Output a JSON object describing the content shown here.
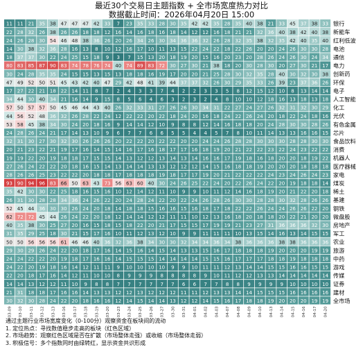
{
  "chart_data": {
    "type": "heatmap",
    "title": "最近30个交易日主题指数 + 全市场宽度热力对比",
    "subtitle": "数据截止时间：2026年04月20日 15:00",
    "x_dates": [
      "03-09",
      "03-10",
      "03-11",
      "03-12",
      "03-13",
      "03-16",
      "03-17",
      "03-18",
      "03-19",
      "03-20",
      "03-23",
      "03-24",
      "03-25",
      "03-26",
      "03-27",
      "03-30",
      "03-31",
      "04-01",
      "04-02",
      "04-03",
      "04-07",
      "04-08",
      "04-09",
      "04-10",
      "04-13",
      "04-14",
      "04-15",
      "04-16",
      "04-17",
      "04-20"
    ],
    "rows": [
      "银行",
      "新能车",
      "红利低波",
      "电池",
      "通信",
      "电力",
      "创新药",
      "环保",
      "电子",
      "人工智能",
      "化工",
      "光伏",
      "有色金属",
      "芯片",
      "食品饮料",
      "消费",
      "机器人",
      "医疗器械",
      "家电",
      "煤炭",
      "稀土",
      "基建",
      "钢铁",
      "微盘股",
      "房地产",
      "军工",
      "农业",
      "旅游",
      "中药",
      "游戏",
      "传媒",
      "证券",
      "建材",
      "全市场"
    ],
    "values": [
      [
        11,
        11,
        21,
        35,
        38,
        47,
        47,
        47,
        42,
        33,
        7,
        23,
        35,
        33,
        28,
        30,
        35,
        42,
        42,
        35,
        28,
        35,
        40,
        38,
        21,
        33,
        45,
        37,
        38,
        33
      ],
      [
        22,
        28,
        32,
        26,
        38,
        26,
        26,
        18,
        18,
        12,
        16,
        14,
        16,
        18,
        16,
        18,
        14,
        12,
        12,
        16,
        18,
        21,
        21,
        32,
        36,
        40,
        38,
        42,
        40,
        38
      ],
      [
        24,
        26,
        28,
        30,
        54,
        46,
        48,
        38,
        36,
        26,
        20,
        26,
        34,
        26,
        30,
        34,
        36,
        36,
        32,
        26,
        28,
        32,
        35,
        38,
        32,
        35,
        42,
        40,
        35,
        40
      ],
      [
        14,
        30,
        38,
        32,
        36,
        28,
        16,
        13,
        8,
        10,
        12,
        16,
        17,
        10,
        11,
        13,
        15,
        22,
        24,
        22,
        18,
        22,
        26,
        20,
        20,
        24,
        26,
        30,
        30,
        28
      ],
      [
        18,
        37,
        37,
        30,
        22,
        24,
        25,
        15,
        18,
        9,
        3,
        7,
        15,
        13,
        20,
        18,
        19,
        20,
        15,
        16,
        20,
        23,
        20,
        28,
        26,
        24,
        26,
        30,
        24,
        34
      ],
      [
        80,
        83,
        85,
        87,
        90,
        83,
        74,
        78,
        76,
        74,
        40,
        74,
        89,
        83,
        72,
        30,
        27,
        30,
        21,
        38,
        18,
        20,
        30,
        28,
        30,
        20,
        27,
        30,
        21,
        17
      ],
      [
        30,
        24,
        28,
        35,
        35,
        24,
        15,
        15,
        13,
        15,
        13,
        18,
        18,
        16,
        19,
        17,
        20,
        20,
        21,
        25,
        28,
        30,
        32,
        35,
        28,
        40,
        30,
        32,
        30,
        38
      ],
      [
        47,
        49,
        52,
        50,
        51,
        45,
        43,
        42,
        40,
        47,
        29,
        42,
        48,
        41,
        39,
        44,
        37,
        37,
        32,
        26,
        30,
        29,
        35,
        33,
        26,
        39,
        23,
        37,
        36,
        26
      ],
      [
        17,
        27,
        22,
        21,
        18,
        22,
        14,
        11,
        8,
        7,
        2,
        4,
        3,
        3,
        7,
        4,
        2,
        2,
        3,
        3,
        5,
        8,
        12,
        15,
        12,
        10,
        8,
        13,
        14,
        14
      ],
      [
        34,
        44,
        30,
        40,
        34,
        21,
        16,
        14,
        9,
        15,
        8,
        5,
        6,
        4,
        6,
        3,
        2,
        3,
        2,
        4,
        8,
        10,
        10,
        12,
        18,
        16,
        13,
        18,
        13,
        18
      ],
      [
        57,
        50,
        57,
        57,
        50,
        45,
        46,
        44,
        43,
        40,
        26,
        32,
        33,
        31,
        27,
        26,
        26,
        30,
        34,
        31,
        22,
        27,
        24,
        27,
        26,
        32,
        31,
        32,
        30,
        29
      ],
      [
        44,
        56,
        52,
        48,
        36,
        32,
        26,
        28,
        22,
        24,
        12,
        22,
        22,
        20,
        22,
        18,
        24,
        20,
        16,
        18,
        24,
        22,
        26,
        24,
        20,
        18,
        22,
        24,
        18,
        16
      ],
      [
        53,
        58,
        45,
        38,
        34,
        30,
        24,
        20,
        18,
        16,
        9,
        14,
        14,
        12,
        10,
        9,
        8,
        8,
        12,
        14,
        16,
        18,
        18,
        20,
        24,
        28,
        30,
        30,
        28,
        26
      ],
      [
        24,
        28,
        26,
        24,
        21,
        17,
        14,
        13,
        10,
        9,
        6,
        7,
        7,
        6,
        6,
        5,
        5,
        4,
        4,
        5,
        7,
        8,
        10,
        11,
        14,
        13,
        13,
        16,
        16,
        15
      ],
      [
        32,
        31,
        30,
        27,
        30,
        32,
        30,
        26,
        26,
        26,
        20,
        22,
        22,
        20,
        22,
        22,
        20,
        20,
        24,
        24,
        26,
        28,
        28,
        30,
        30,
        30,
        28,
        28,
        30,
        30
      ],
      [
        20,
        21,
        23,
        22,
        21,
        19,
        17,
        16,
        14,
        15,
        14,
        16,
        17,
        16,
        18,
        17,
        17,
        16,
        18,
        19,
        20,
        21,
        22,
        22,
        23,
        22,
        24,
        23,
        22,
        22
      ],
      [
        19,
        19,
        22,
        20,
        19,
        18,
        18,
        17,
        15,
        15,
        14,
        13,
        12,
        12,
        13,
        14,
        13,
        14,
        16,
        16,
        17,
        19,
        18,
        16,
        18,
        20,
        20,
        18,
        19,
        22
      ],
      [
        27,
        26,
        24,
        22,
        22,
        20,
        18,
        16,
        15,
        14,
        13,
        14,
        14,
        13,
        13,
        12,
        12,
        12,
        14,
        15,
        16,
        18,
        18,
        19,
        20,
        20,
        20,
        18,
        18,
        18
      ],
      [
        28,
        26,
        26,
        25,
        23,
        22,
        22,
        20,
        18,
        18,
        17,
        18,
        18,
        18,
        19,
        18,
        17,
        17,
        19,
        20,
        21,
        22,
        22,
        22,
        24,
        23,
        24,
        26,
        24,
        23
      ],
      [
        93,
        90,
        94,
        96,
        83,
        66,
        50,
        63,
        43,
        73,
        56,
        63,
        60,
        40,
        30,
        24,
        26,
        25,
        22,
        24,
        20,
        22,
        26,
        24,
        22,
        20,
        19,
        18,
        18,
        14
      ],
      [
        35,
        42,
        30,
        30,
        22,
        25,
        18,
        16,
        15,
        16,
        10,
        12,
        14,
        12,
        11,
        10,
        9,
        9,
        10,
        11,
        12,
        14,
        16,
        18,
        19,
        20,
        21,
        22,
        20,
        18
      ],
      [
        26,
        31,
        30,
        28,
        28,
        34,
        36,
        24,
        26,
        22,
        20,
        24,
        28,
        24,
        22,
        20,
        22,
        24,
        26,
        28,
        26,
        30,
        30,
        28,
        28,
        30,
        32,
        28,
        26,
        26
      ],
      [
        52,
        45,
        44,
        36,
        30,
        30,
        26,
        24,
        20,
        18,
        14,
        18,
        18,
        15,
        16,
        16,
        15,
        16,
        18,
        17,
        18,
        22,
        22,
        26,
        24,
        24,
        26,
        26,
        22,
        20
      ],
      [
        62,
        72,
        72,
        45,
        44,
        26,
        24,
        22,
        20,
        18,
        12,
        14,
        14,
        12,
        12,
        11,
        11,
        10,
        12,
        13,
        16,
        18,
        20,
        18,
        18,
        20,
        22,
        21,
        20,
        20
      ],
      [
        40,
        35,
        38,
        30,
        25,
        27,
        20,
        16,
        15,
        18,
        15,
        18,
        22,
        20,
        21,
        17,
        15,
        15,
        17,
        19,
        19,
        21,
        23,
        27,
        31,
        36,
        36,
        36,
        32,
        30
      ],
      [
        31,
        35,
        29,
        25,
        18,
        30,
        21,
        15,
        17,
        16,
        10,
        11,
        12,
        13,
        12,
        10,
        9,
        9,
        11,
        11,
        11,
        10,
        13,
        15,
        14,
        16,
        13,
        14,
        15,
        15
      ],
      [
        50,
        50,
        56,
        56,
        56,
        61,
        46,
        46,
        40,
        36,
        32,
        36,
        38,
        34,
        30,
        30,
        32,
        34,
        34,
        36,
        34,
        38,
        36,
        36,
        36,
        38,
        38,
        36,
        36,
        36
      ],
      [
        29,
        30,
        29,
        26,
        24,
        22,
        20,
        18,
        17,
        16,
        14,
        15,
        16,
        14,
        15,
        14,
        13,
        13,
        15,
        16,
        17,
        18,
        18,
        18,
        19,
        20,
        20,
        20,
        19,
        19
      ],
      [
        24,
        24,
        22,
        22,
        20,
        19,
        18,
        17,
        16,
        16,
        14,
        15,
        15,
        15,
        14,
        14,
        14,
        14,
        15,
        15,
        16,
        17,
        17,
        17,
        18,
        18,
        19,
        18,
        18,
        18
      ],
      [
        24,
        22,
        20,
        19,
        18,
        16,
        14,
        12,
        11,
        11,
        9,
        10,
        10,
        10,
        10,
        9,
        9,
        10,
        11,
        11,
        12,
        13,
        14,
        14,
        15,
        15,
        16,
        16,
        15,
        15
      ],
      [
        22,
        20,
        18,
        17,
        16,
        14,
        12,
        11,
        10,
        10,
        8,
        9,
        9,
        9,
        8,
        8,
        8,
        8,
        9,
        10,
        11,
        12,
        12,
        13,
        13,
        14,
        14,
        14,
        14,
        14
      ],
      [
        14,
        14,
        13,
        12,
        12,
        11,
        10,
        9,
        8,
        8,
        7,
        7,
        7,
        7,
        7,
        7,
        6,
        6,
        7,
        7,
        8,
        8,
        9,
        9,
        9,
        9,
        10,
        10,
        10,
        10
      ],
      [
        21,
        31,
        18,
        18,
        17,
        16,
        16,
        14,
        13,
        13,
        12,
        12,
        13,
        12,
        12,
        12,
        11,
        11,
        12,
        13,
        13,
        14,
        14,
        15,
        15,
        15,
        16,
        16,
        16,
        16
      ],
      [
        30,
        32,
        30,
        28,
        24,
        22,
        20,
        18,
        16,
        16,
        12,
        14,
        15,
        14,
        14,
        13,
        12,
        12,
        14,
        15,
        16,
        17,
        18,
        18,
        19,
        20,
        20,
        20,
        19,
        19
      ]
    ],
    "value_range": [
      0,
      100
    ]
  },
  "notes": [
    "通过主题行业市场宽度变化（0-100分）观察资金在板块间的流动",
    "1. 定位热点：寻找数值稳步走高的板块（红色区域）",
    "2. 市场趋势：观察红色区域是否在扩散（市场整体走强）或收缩（市场整体走弱）",
    "3. 积极信号：多个指数同时由绿转红，显示资金共识形成"
  ]
}
